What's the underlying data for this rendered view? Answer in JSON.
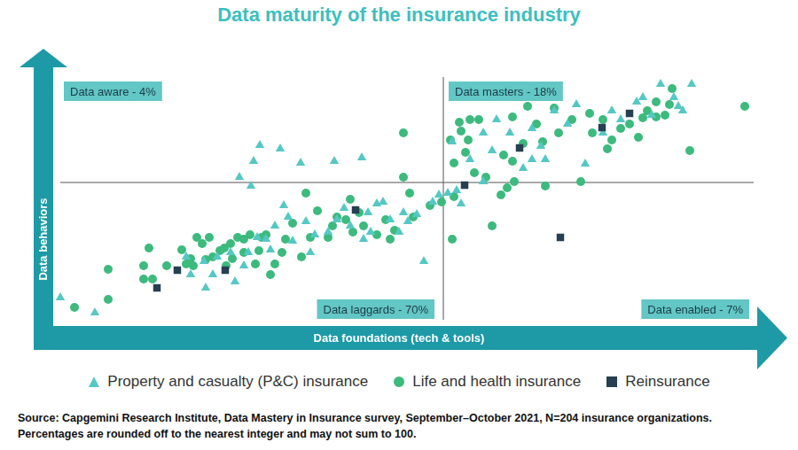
{
  "chart_data": {
    "type": "scatter",
    "title": "Data maturity of the insurance industry",
    "x_label": "Data foundations (tech & tools)",
    "y_label": "Data behaviors",
    "xlim": [
      0,
      790
    ],
    "ylim": [
      0,
      290
    ],
    "tick_labels": false,
    "grid": false,
    "legend": "bottom",
    "quadrant_lines": {
      "x": 440,
      "y": 159
    },
    "quadrants": [
      {
        "label": "Data aware - 4%"
      },
      {
        "label": "Data masters - 18%"
      },
      {
        "label": "Data laggards - 70%"
      },
      {
        "label": "Data enabled - 7%"
      }
    ],
    "series": [
      {
        "name": "Property and casualty (P&C) insurance",
        "color": "#55c8c4",
        "marker": "triangle",
        "x": [
          8,
          47,
          210,
          226,
          233,
          256,
          279,
          317,
          348,
          223,
          172,
          170,
          185,
          200,
          215,
          230,
          240,
          250,
          265,
          270,
          285,
          290,
          295,
          310,
          320,
          335,
          350,
          355,
          365,
          372,
          380,
          390,
          400,
          410,
          418,
          428,
          435,
          155,
          180,
          205,
          220,
          245,
          260,
          328,
          358,
          395,
          150,
          450,
          470,
          495,
          485,
          500,
          515,
          540,
          550,
          555,
          565,
          580,
          590,
          600,
          620,
          630,
          640,
          658,
          665,
          675,
          685,
          700,
          710,
          720,
          705,
          540,
          460,
          455,
          445,
          485,
          530
        ],
        "values": [
          29,
          12,
          165,
          183,
          201,
          197,
          181,
          183,
          187,
          155,
          40,
          70,
          75,
          80,
          65,
          97,
          95,
          110,
          120,
          93,
          115,
          80,
          100,
          103,
          117,
          110,
          95,
          125,
          135,
          137,
          117,
          103,
          115,
          123,
          70,
          137,
          145,
          55,
          55,
          47,
          80,
          83,
          133,
          130,
          103,
          125,
          75,
          205,
          185,
          195,
          215,
          230,
          215,
          220,
          200,
          185,
          240,
          225,
          247,
          180,
          215,
          240,
          230,
          250,
          255,
          235,
          270,
          255,
          240,
          270,
          245,
          185,
          135,
          150,
          147,
          160,
          175
        ]
      },
      {
        "name": "Life and health insurance",
        "color": "#3dba7e",
        "marker": "circle",
        "x": [
          24,
          62,
          62,
          102,
          102,
          108,
          112,
          128,
          145,
          150,
          155,
          162,
          168,
          176,
          180,
          188,
          195,
          200,
          202,
          208,
          215,
          222,
          228,
          232,
          235,
          240,
          250,
          258,
          262,
          270,
          280,
          285,
          290,
          298,
          310,
          315,
          320,
          330,
          338,
          345,
          350,
          365,
          375,
          385,
          395,
          395,
          402,
          406,
          425,
          438,
          450,
          452,
          448,
          452,
          458,
          465,
          470,
          480,
          475,
          488,
          495,
          505,
          508,
          518,
          520,
          518,
          530,
          535,
          545,
          552,
          565,
          570,
          585,
          595,
          605,
          608,
          620,
          625,
          630,
          640,
          650,
          660,
          665,
          670,
          680,
          680,
          690,
          695,
          698,
          718,
          780,
          555,
          512,
          468,
          460,
          193,
          172,
          158,
          245,
          215,
          335,
          380
        ],
        "values": [
          18,
          61,
          27,
          65,
          50,
          85,
          50,
          65,
          83,
          67,
          73,
          97,
          90,
          97,
          75,
          82,
          65,
          90,
          73,
          97,
          95,
          100,
          67,
          82,
          97,
          100,
          67,
          80,
          95,
          113,
          75,
          147,
          97,
          127,
          97,
          110,
          120,
          117,
          103,
          125,
          110,
          100,
          117,
          105,
          215,
          165,
          147,
          120,
          133,
          137,
          95,
          143,
          207,
          181,
          227,
          193,
          230,
          230,
          170,
          165,
          110,
          145,
          190,
          183,
          160,
          233,
          203,
          245,
          225,
          205,
          243,
          215,
          230,
          160,
          237,
          215,
          230,
          197,
          207,
          220,
          225,
          210,
          232,
          240,
          250,
          233,
          235,
          247,
          265,
          195,
          245,
          155,
          153,
          207,
          217,
          85,
          72,
          65,
          55,
          80,
          140,
          95
        ]
      },
      {
        "name": "Reinsurance",
        "color": "#263f52",
        "marker": "square",
        "x": [
          117,
          140,
          194,
          341,
          464,
          526,
          572,
          619,
          650
        ],
        "values": [
          40,
          60,
          60,
          128,
          156,
          198,
          97,
          221,
          237
        ]
      }
    ],
    "source": [
      "Source: Capgemini Research Institute, Data Mastery in Insurance survey, September–October 2021, N=204 insurance organizations.",
      "Percentages are rounded off to the nearest integer and may not sum to 100."
    ]
  }
}
